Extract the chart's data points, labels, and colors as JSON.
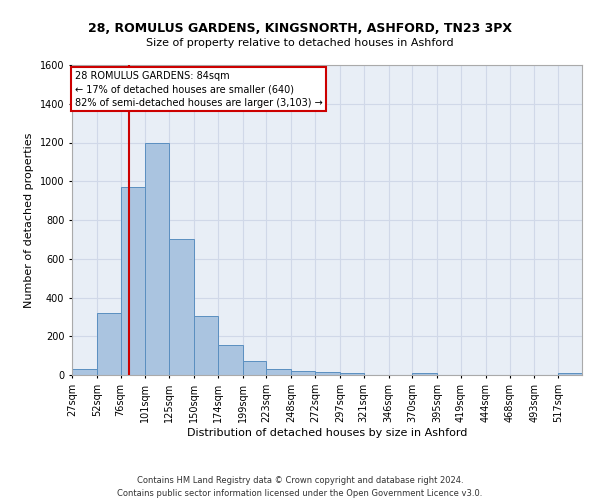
{
  "title1": "28, ROMULUS GARDENS, KINGSNORTH, ASHFORD, TN23 3PX",
  "title2": "Size of property relative to detached houses in Ashford",
  "xlabel": "Distribution of detached houses by size in Ashford",
  "ylabel": "Number of detached properties",
  "footer1": "Contains HM Land Registry data © Crown copyright and database right 2024.",
  "footer2": "Contains public sector information licensed under the Open Government Licence v3.0.",
  "annotation_title": "28 ROMULUS GARDENS: 84sqm",
  "annotation_line1": "← 17% of detached houses are smaller (640)",
  "annotation_line2": "82% of semi-detached houses are larger (3,103) →",
  "property_size": 84,
  "bar_labels": [
    "27sqm",
    "52sqm",
    "76sqm",
    "101sqm",
    "125sqm",
    "150sqm",
    "174sqm",
    "199sqm",
    "223sqm",
    "248sqm",
    "272sqm",
    "297sqm",
    "321sqm",
    "346sqm",
    "370sqm",
    "395sqm",
    "419sqm",
    "444sqm",
    "468sqm",
    "493sqm",
    "517sqm"
  ],
  "bar_values": [
    30,
    320,
    970,
    1200,
    700,
    305,
    155,
    70,
    30,
    20,
    15,
    10,
    0,
    0,
    10,
    0,
    0,
    0,
    0,
    0,
    10
  ],
  "bar_edges": [
    27,
    52,
    76,
    101,
    125,
    150,
    174,
    199,
    223,
    248,
    272,
    297,
    321,
    346,
    370,
    395,
    419,
    444,
    468,
    493,
    517,
    541
  ],
  "bar_color": "#aac4e0",
  "bar_edge_color": "#5a8fc0",
  "vline_color": "#cc0000",
  "vline_x": 84,
  "ylim": [
    0,
    1600
  ],
  "yticks": [
    0,
    200,
    400,
    600,
    800,
    1000,
    1200,
    1400,
    1600
  ],
  "grid_color": "#d0d8e8",
  "bg_color": "#e8eef6",
  "annotation_box_color": "#ffffff",
  "annotation_box_edge": "#cc0000",
  "title1_fontsize": 9,
  "title2_fontsize": 8,
  "ylabel_fontsize": 8,
  "xlabel_fontsize": 8,
  "tick_fontsize": 7,
  "footer_fontsize": 6
}
